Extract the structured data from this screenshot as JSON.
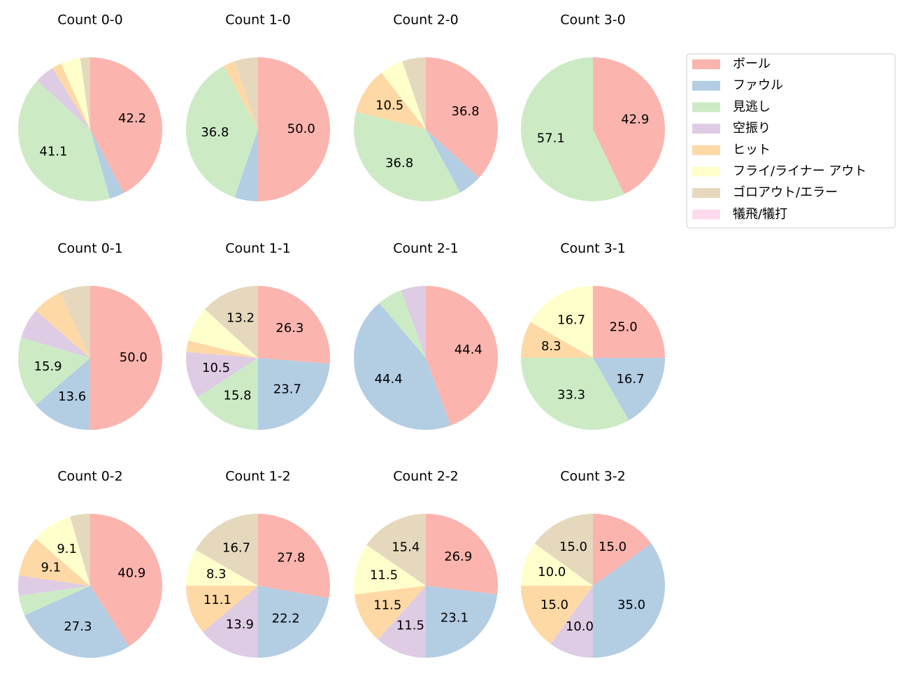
{
  "legend": {
    "categories": [
      "ボール",
      "ファウル",
      "見逃し",
      "空振り",
      "ヒット",
      "フライ/ライナー アウト",
      "ゴロアウト/エラー",
      "犠飛/犠打"
    ],
    "colors": [
      "#fbb4ae",
      "#b3cde3",
      "#ccebc5",
      "#decbe4",
      "#fed9a6",
      "#ffffcc",
      "#e5d8bd",
      "#fddaec"
    ],
    "position": "upper right"
  },
  "chart_data": [
    {
      "type": "pie",
      "title": "Count 0-0",
      "values": [
        42.2,
        3.3,
        41.1,
        4.4,
        2.2,
        4.4,
        2.2,
        0
      ],
      "value_labels": [
        "42.2",
        null,
        "41.1",
        null,
        null,
        null,
        null,
        null
      ]
    },
    {
      "type": "pie",
      "title": "Count 1-0",
      "values": [
        50.0,
        5.3,
        36.8,
        0,
        2.6,
        0,
        5.3,
        0
      ],
      "value_labels": [
        "50.0",
        null,
        "36.8",
        null,
        null,
        null,
        null,
        null
      ]
    },
    {
      "type": "pie",
      "title": "Count 2-0",
      "values": [
        36.8,
        5.3,
        36.8,
        0,
        10.5,
        5.3,
        5.3,
        0
      ],
      "value_labels": [
        "36.8",
        null,
        "36.8",
        null,
        "10.5",
        null,
        null,
        null
      ]
    },
    {
      "type": "pie",
      "title": "Count 3-0",
      "values": [
        42.9,
        0,
        57.1,
        0,
        0,
        0,
        0,
        0
      ],
      "value_labels": [
        "42.9",
        null,
        "57.1",
        null,
        null,
        null,
        null,
        null
      ]
    },
    {
      "type": "pie",
      "title": "Count 0-1",
      "values": [
        50.0,
        13.6,
        15.9,
        6.8,
        6.8,
        0,
        6.8,
        0
      ],
      "value_labels": [
        "50.0",
        "13.6",
        "15.9",
        null,
        null,
        null,
        null,
        null
      ]
    },
    {
      "type": "pie",
      "title": "Count 1-1",
      "values": [
        26.3,
        23.7,
        15.8,
        10.5,
        2.6,
        7.9,
        13.2,
        0
      ],
      "value_labels": [
        "26.3",
        "23.7",
        "15.8",
        "10.5",
        null,
        null,
        "13.2",
        null
      ]
    },
    {
      "type": "pie",
      "title": "Count 2-1",
      "values": [
        44.4,
        44.4,
        5.6,
        5.6,
        0,
        0,
        0,
        0
      ],
      "value_labels": [
        "44.4",
        "44.4",
        null,
        null,
        null,
        null,
        null,
        null
      ]
    },
    {
      "type": "pie",
      "title": "Count 3-1",
      "values": [
        25.0,
        16.7,
        33.3,
        0,
        8.3,
        16.7,
        0,
        0
      ],
      "value_labels": [
        "25.0",
        "16.7",
        "33.3",
        null,
        "8.3",
        "16.7",
        null,
        null
      ]
    },
    {
      "type": "pie",
      "title": "Count 0-2",
      "values": [
        40.9,
        27.3,
        4.5,
        4.5,
        9.1,
        9.1,
        4.5,
        0
      ],
      "value_labels": [
        "40.9",
        "27.3",
        null,
        null,
        "9.1",
        "9.1",
        null,
        null
      ]
    },
    {
      "type": "pie",
      "title": "Count 1-2",
      "values": [
        27.8,
        22.2,
        0,
        13.9,
        11.1,
        8.3,
        16.7,
        0
      ],
      "value_labels": [
        "27.8",
        "22.2",
        null,
        "13.9",
        "11.1",
        "8.3",
        "16.7",
        null
      ]
    },
    {
      "type": "pie",
      "title": "Count 2-2",
      "values": [
        26.9,
        23.1,
        0,
        11.5,
        11.5,
        11.5,
        15.4,
        0
      ],
      "value_labels": [
        "26.9",
        "23.1",
        null,
        "11.5",
        "11.5",
        "11.5",
        "15.4",
        null
      ]
    },
    {
      "type": "pie",
      "title": "Count 3-2",
      "values": [
        15.0,
        35.0,
        0,
        10.0,
        15.0,
        10.0,
        15.0,
        0
      ],
      "value_labels": [
        "15.0",
        "35.0",
        null,
        "10.0",
        "15.0",
        "10.0",
        "15.0",
        null
      ]
    }
  ]
}
